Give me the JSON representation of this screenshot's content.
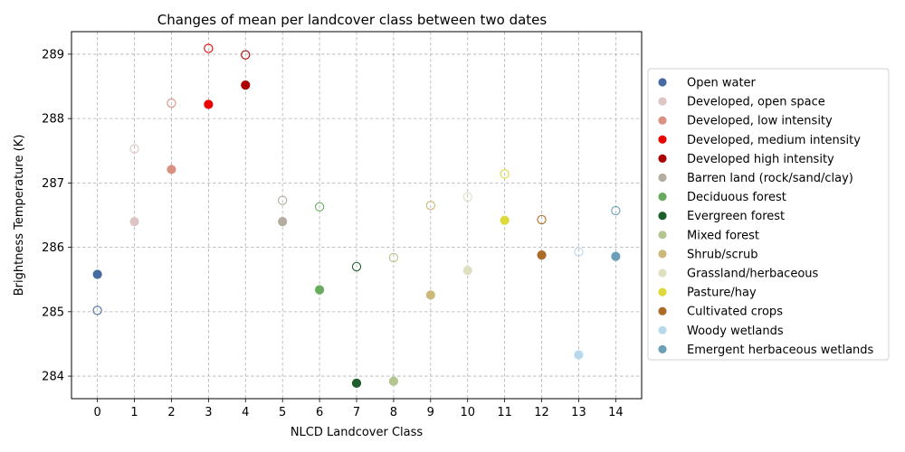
{
  "chart_data": {
    "type": "scatter",
    "title": "Changes of mean per landcover class between two dates",
    "xlabel": "NLCD Landcover Class",
    "ylabel": "Brightness Temperature (K)",
    "xlim": [
      -0.7,
      14.7
    ],
    "ylim": [
      283.65,
      289.35
    ],
    "xticks": [
      0,
      1,
      2,
      3,
      4,
      5,
      6,
      7,
      8,
      9,
      10,
      11,
      12,
      13,
      14
    ],
    "yticks": [
      284,
      285,
      286,
      287,
      288,
      289
    ],
    "grid": true,
    "legend_position": "right, outside plot",
    "marker_styles": {
      "date1": "filled circle",
      "date2": "hollow circle"
    },
    "series": [
      {
        "name": "Open water",
        "color": "#476ba1",
        "x": 0,
        "filled": 285.58,
        "hollow": 285.02
      },
      {
        "name": "Developed, open space",
        "color": "#dec5c5",
        "x": 1,
        "filled": 286.4,
        "hollow": 287.53
      },
      {
        "name": "Developed, low intensity",
        "color": "#d99282",
        "x": 2,
        "filled": 287.21,
        "hollow": 288.24
      },
      {
        "name": "Developed, medium intensity",
        "color": "#eb0000",
        "x": 3,
        "filled": 288.22,
        "hollow": 289.09
      },
      {
        "name": "Developed high intensity",
        "color": "#ab0000",
        "x": 4,
        "filled": 288.52,
        "hollow": 288.99
      },
      {
        "name": "Barren land (rock/sand/clay)",
        "color": "#b3ac9f",
        "x": 5,
        "filled": 286.4,
        "hollow": 286.73
      },
      {
        "name": "Deciduous forest",
        "color": "#68ab5f",
        "x": 6,
        "filled": 285.34,
        "hollow": 286.63
      },
      {
        "name": "Evergreen forest",
        "color": "#1c5f2c",
        "x": 7,
        "filled": 283.89,
        "hollow": 285.7
      },
      {
        "name": "Mixed forest",
        "color": "#b5c58f",
        "x": 8,
        "filled": 283.92,
        "hollow": 285.84
      },
      {
        "name": "Shrub/scrub",
        "color": "#ccb879",
        "x": 9,
        "filled": 285.26,
        "hollow": 286.65
      },
      {
        "name": "Grassland/herbaceous",
        "color": "#dfdfc2",
        "x": 10,
        "filled": 285.64,
        "hollow": 286.78
      },
      {
        "name": "Pasture/hay",
        "color": "#dcd939",
        "x": 11,
        "filled": 286.42,
        "hollow": 287.14
      },
      {
        "name": "Cultivated crops",
        "color": "#ab6c28",
        "x": 12,
        "filled": 285.88,
        "hollow": 286.43
      },
      {
        "name": "Woody wetlands",
        "color": "#b8d9eb",
        "x": 13,
        "filled": 284.33,
        "hollow": 285.93
      },
      {
        "name": "Emergent herbaceous wetlands",
        "color": "#6c9fb8",
        "x": 14,
        "filled": 285.86,
        "hollow": 286.57
      }
    ]
  }
}
